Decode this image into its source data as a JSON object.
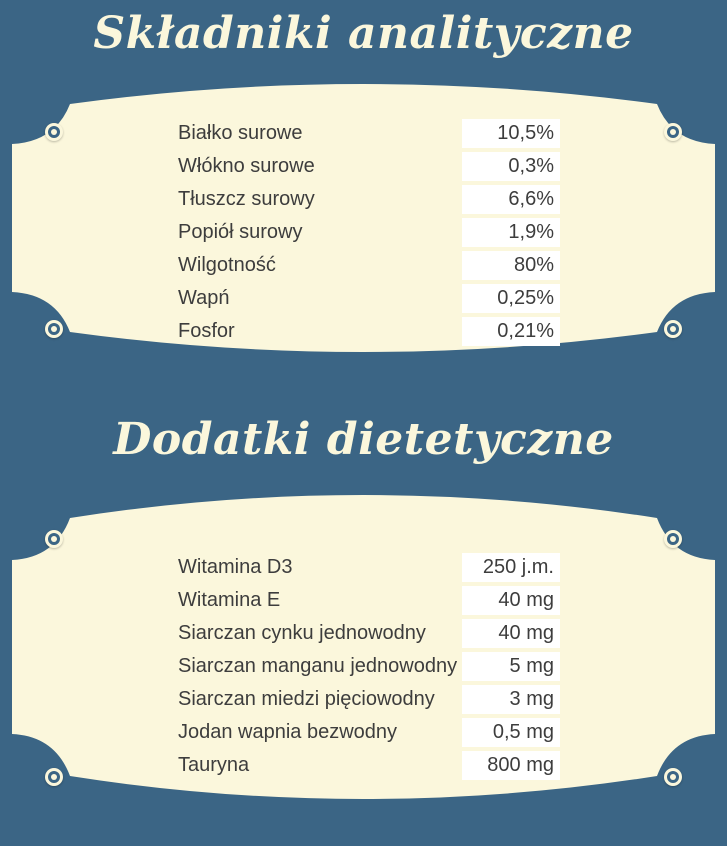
{
  "sections": [
    {
      "title": "Składniki analityczne",
      "rows": [
        {
          "name": "Białko surowe",
          "value": "10,5%"
        },
        {
          "name": "Włókno surowe",
          "value": "0,3%"
        },
        {
          "name": "Tłuszcz surowy",
          "value": "6,6%"
        },
        {
          "name": "Popiół surowy",
          "value": "1,9%"
        },
        {
          "name": "Wilgotność",
          "value": "80%"
        },
        {
          "name": "Wapń",
          "value": "0,25%"
        },
        {
          "name": "Fosfor",
          "value": "0,21%"
        }
      ]
    },
    {
      "title": "Dodatki dietetyczne",
      "rows": [
        {
          "name": "Witamina D3",
          "value": "250 j.m."
        },
        {
          "name": "Witamina E",
          "value": "40 mg"
        },
        {
          "name": "Siarczan cynku jednowodny",
          "value": "40 mg"
        },
        {
          "name": "Siarczan manganu jednowodny",
          "value": "5 mg"
        },
        {
          "name": "Siarczan miedzi pięciowodny",
          "value": "3 mg"
        },
        {
          "name": "Jodan wapnia bezwodny",
          "value": "0,5 mg"
        },
        {
          "name": "Tauryna",
          "value": "800 mg"
        }
      ]
    }
  ],
  "colors": {
    "background": "#3b6585",
    "panel": "#fbf7dc",
    "title": "#fbf7dc",
    "text": "#3d3d3d",
    "value_box": "#ffffff"
  }
}
